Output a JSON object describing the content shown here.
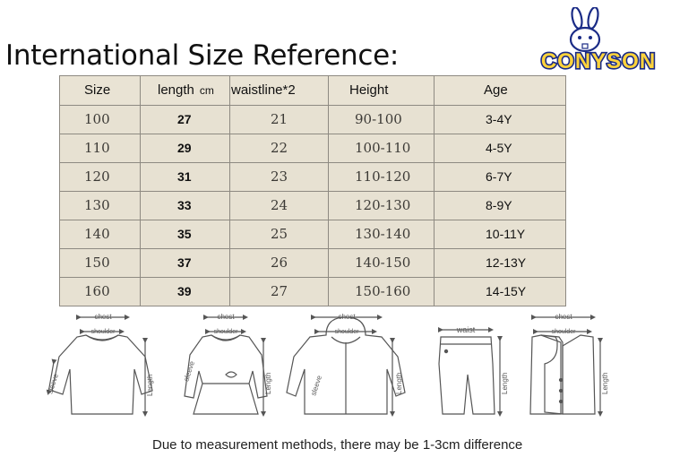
{
  "title": "International Size Reference:",
  "logo": {
    "text": "CONYSON",
    "colors": {
      "fill": "#fed33b",
      "outline": "#1a2b86"
    }
  },
  "table": {
    "headers": {
      "size": "Size",
      "length": "length",
      "length_unit": "cm",
      "waistline": "waistline*2",
      "height": "Height",
      "age": "Age"
    },
    "rows": [
      {
        "size": "100",
        "length": "27",
        "waistline": "21",
        "height": "90-100",
        "age": "3-4Y"
      },
      {
        "size": "110",
        "length": "29",
        "waistline": "22",
        "height": "100-110",
        "age": "4-5Y"
      },
      {
        "size": "120",
        "length": "31",
        "waistline": "23",
        "height": "110-120",
        "age": "6-7Y"
      },
      {
        "size": "130",
        "length": "33",
        "waistline": "24",
        "height": "120-130",
        "age": "8-9Y"
      },
      {
        "size": "140",
        "length": "35",
        "waistline": "25",
        "height": "130-140",
        "age": "10-11Y"
      },
      {
        "size": "150",
        "length": "37",
        "waistline": "26",
        "height": "140-150",
        "age": "12-13Y"
      },
      {
        "size": "160",
        "length": "39",
        "waistline": "27",
        "height": "150-160",
        "age": "14-15Y"
      }
    ]
  },
  "diagram_labels": {
    "chest": "chest",
    "shoulder": "shoulder",
    "sleeve": "sleeve",
    "length": "Length",
    "waist": "waist"
  },
  "footnote": "Due to measurement methods, there may be 1-3cm difference"
}
